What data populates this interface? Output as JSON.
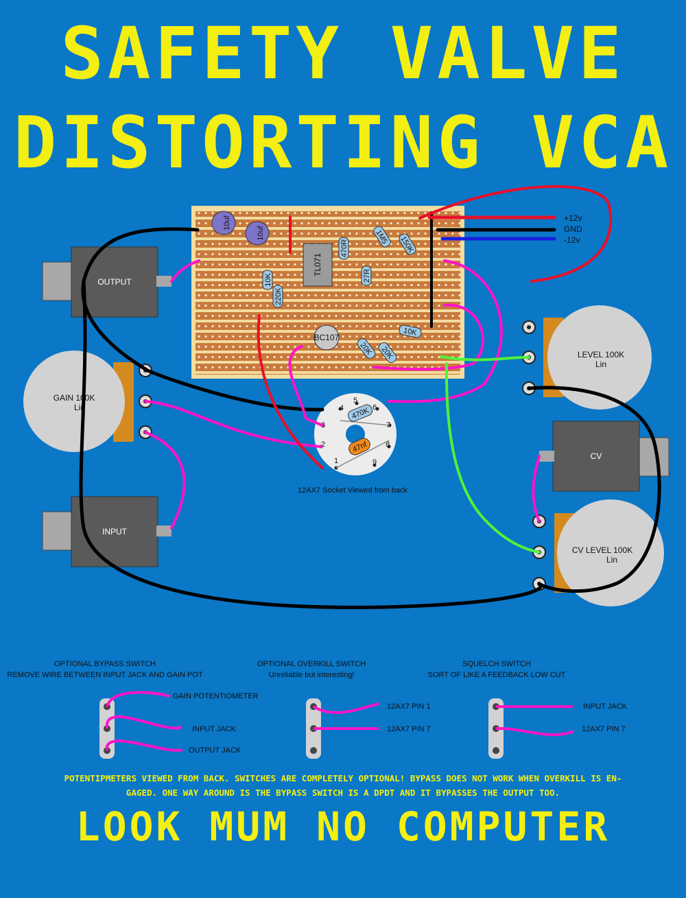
{
  "title": {
    "line1": "SAFETY VALVE",
    "line2": "DISTORTING VCA"
  },
  "power": {
    "plus": "+12v",
    "gnd": "GND",
    "minus": "-12v"
  },
  "components": {
    "c1": "10uf",
    "c2": "10uf",
    "ic": "TL071",
    "r_10k_a": "10K",
    "r_220k": "220K",
    "r_470r": "470R",
    "r_27r": "27R",
    "r_1m5": "1M5",
    "r_150k": "150K",
    "r_10k_b": "10K",
    "r_20k_a": "20K",
    "r_20k_b": "20K",
    "transistor": "BC107",
    "socket_r": "470K",
    "socket_c": "47nf"
  },
  "jacks": {
    "output": "OUTPUT",
    "input": "INPUT",
    "cv": "CV"
  },
  "pots": {
    "gain": {
      "name": "GAIN 100K",
      "taper": "Lin"
    },
    "level": {
      "name": "LEVEL 100K",
      "taper": "Lin"
    },
    "cv_level": {
      "name": "CV LEVEL 100K",
      "taper": "Lin"
    }
  },
  "socket": {
    "caption": "12AX7 Socket Viewed from back",
    "pins": [
      "1",
      "2",
      "3",
      "4",
      "5",
      "6",
      "7",
      "8",
      "9"
    ]
  },
  "switches": {
    "bypass": {
      "title": "OPTIONAL BYPASS SWITCH",
      "subtitle": "REMOVE WIRE BETWEEN INPUT JACK AND GAIN POT",
      "labels": [
        "GAIN POTENTIOMETER",
        "INPUT JACK",
        "OUTPUT JACK"
      ]
    },
    "overkill": {
      "title": "OPTIONAL OVERKILL SWITCH",
      "subtitle": "Unreliable but interesting!",
      "labels": [
        "12AX7 PIN 1",
        "12AX7 PIN 7"
      ]
    },
    "squelch": {
      "title": "SQUELCH SWITCH",
      "subtitle": "SORT OF LIKE A FEEDBACK LOW CUT",
      "labels": [
        "INPUT JACK",
        "12AX7 PIN 7"
      ]
    }
  },
  "note": {
    "line1": "POTENTIPMETERS VIEWED FROM BACK. SWITCHES ARE COMPLETELY OPTIONAL! BYPASS DOES NOT WORK WHEN OVERKILL IS EN-",
    "line2": "GAGED. ONE WAY AROUND IS THE BYPASS SWITCH IS A DPDT AND IT BYPASSES THE OUTPUT TOO."
  },
  "footer": "LOOK MUM NO COMPUTER",
  "colors": {
    "background": "#0a77c7",
    "title": "#f4ef12",
    "wire_pink": "#ff14c8",
    "wire_black": "#000000",
    "wire_red": "#e8102a",
    "wire_green": "#4ff23a",
    "wire_blue": "#1a1fe0",
    "stripboard": "#c97a3c",
    "pot_body": "#d2d2d2",
    "jack_body": "#5a5a5a"
  }
}
